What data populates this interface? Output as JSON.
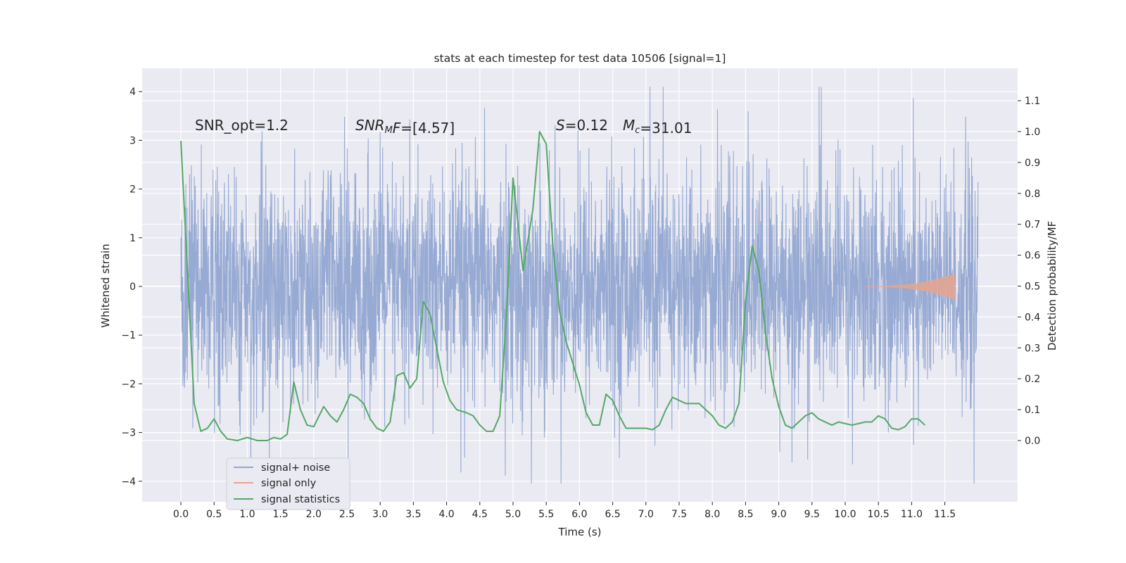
{
  "chart_data": {
    "type": "line",
    "title": "stats at each timestep for test data 10506 [signal=1]",
    "xlabel": "Time (s)",
    "ylabel_left": "Whitened strain",
    "ylabel_right": "Detection probability/MF",
    "xlim": [
      -0.57,
      12.57
    ],
    "ylim_left": [
      -4.4,
      4.5
    ],
    "ylim_right": [
      -0.2,
      1.2
    ],
    "x_ticks": [
      "0.0",
      "0.5",
      "1.0",
      "1.5",
      "2.0",
      "2.5",
      "3.0",
      "3.5",
      "4.0",
      "4.5",
      "5.0",
      "5.5",
      "6.0",
      "6.5",
      "7.0",
      "7.5",
      "8.0",
      "8.5",
      "9.0",
      "9.5",
      "10.0",
      "10.5",
      "11.0",
      "11.5"
    ],
    "y_ticks_left": [
      "−4",
      "−3",
      "−2",
      "−1",
      "0",
      "1",
      "2",
      "3",
      "4"
    ],
    "y_ticks_right": [
      "0.0",
      "0.1",
      "0.2",
      "0.3",
      "0.4",
      "0.5",
      "0.6",
      "0.7",
      "0.8",
      "0.9",
      "1.0",
      "1.1"
    ],
    "grid": true,
    "legend_position": "lower-left",
    "annotations": [
      {
        "name": "snr-opt",
        "segments": [
          {
            "text": "SNR_opt=1.2"
          }
        ]
      },
      {
        "name": "snr-mf",
        "segments": [
          {
            "text": "SNR",
            "italic": true
          },
          {
            "text": "M",
            "italic": true,
            "sub": true
          },
          {
            "text": "F",
            "italic": true
          },
          {
            "text": "=[4.57]"
          }
        ]
      },
      {
        "name": "s-value",
        "segments": [
          {
            "text": "S",
            "italic": true
          },
          {
            "text": "=0.12"
          }
        ]
      },
      {
        "name": "mc-value",
        "segments": [
          {
            "text": "M",
            "italic": true
          },
          {
            "text": "c",
            "italic": true,
            "sub": true
          },
          {
            "text": "=31.01"
          }
        ]
      }
    ],
    "series": [
      {
        "name": "signal+ noise",
        "axis": "left",
        "color": "#92a6d1",
        "x_range": [
          0.0,
          12.0
        ],
        "typical_amplitude": 1.3,
        "envelope_peak_max": [
          4.0,
          4.1,
          4.0
        ],
        "envelope_peak_min": [
          -3.5,
          -3.8,
          -4.0
        ]
      },
      {
        "name": "signal only",
        "axis": "left",
        "color": "#e6a58c",
        "x_range": [
          10.3,
          11.65
        ],
        "amplitude_max": 0.28
      },
      {
        "name": "signal statistics",
        "axis": "right",
        "color": "#55a868",
        "points": [
          [
            0.0,
            0.97
          ],
          [
            0.1,
            0.55
          ],
          [
            0.2,
            0.12
          ],
          [
            0.3,
            0.03
          ],
          [
            0.4,
            0.04
          ],
          [
            0.5,
            0.07
          ],
          [
            0.6,
            0.03
          ],
          [
            0.7,
            0.005
          ],
          [
            0.85,
            0.0
          ],
          [
            1.0,
            0.01
          ],
          [
            1.15,
            0.0
          ],
          [
            1.3,
            0.0
          ],
          [
            1.4,
            0.01
          ],
          [
            1.5,
            0.005
          ],
          [
            1.6,
            0.02
          ],
          [
            1.7,
            0.19
          ],
          [
            1.8,
            0.1
          ],
          [
            1.9,
            0.05
          ],
          [
            2.0,
            0.045
          ],
          [
            2.15,
            0.11
          ],
          [
            2.25,
            0.08
          ],
          [
            2.35,
            0.06
          ],
          [
            2.45,
            0.1
          ],
          [
            2.55,
            0.15
          ],
          [
            2.65,
            0.14
          ],
          [
            2.75,
            0.12
          ],
          [
            2.85,
            0.07
          ],
          [
            2.95,
            0.04
          ],
          [
            3.05,
            0.03
          ],
          [
            3.15,
            0.06
          ],
          [
            3.25,
            0.21
          ],
          [
            3.35,
            0.22
          ],
          [
            3.45,
            0.17
          ],
          [
            3.55,
            0.2
          ],
          [
            3.65,
            0.45
          ],
          [
            3.75,
            0.41
          ],
          [
            3.85,
            0.3
          ],
          [
            3.95,
            0.19
          ],
          [
            4.05,
            0.13
          ],
          [
            4.15,
            0.1
          ],
          [
            4.3,
            0.09
          ],
          [
            4.4,
            0.08
          ],
          [
            4.5,
            0.05
          ],
          [
            4.6,
            0.03
          ],
          [
            4.7,
            0.03
          ],
          [
            4.8,
            0.08
          ],
          [
            4.9,
            0.4
          ],
          [
            5.0,
            0.85
          ],
          [
            5.15,
            0.55
          ],
          [
            5.3,
            0.75
          ],
          [
            5.4,
            1.0
          ],
          [
            5.5,
            0.96
          ],
          [
            5.6,
            0.63
          ],
          [
            5.7,
            0.42
          ],
          [
            5.8,
            0.32
          ],
          [
            5.9,
            0.25
          ],
          [
            6.0,
            0.18
          ],
          [
            6.1,
            0.09
          ],
          [
            6.2,
            0.05
          ],
          [
            6.3,
            0.05
          ],
          [
            6.4,
            0.15
          ],
          [
            6.5,
            0.13
          ],
          [
            6.6,
            0.08
          ],
          [
            6.7,
            0.04
          ],
          [
            6.8,
            0.04
          ],
          [
            6.9,
            0.04
          ],
          [
            7.0,
            0.04
          ],
          [
            7.1,
            0.035
          ],
          [
            7.2,
            0.05
          ],
          [
            7.3,
            0.1
          ],
          [
            7.4,
            0.14
          ],
          [
            7.5,
            0.13
          ],
          [
            7.6,
            0.12
          ],
          [
            7.7,
            0.12
          ],
          [
            7.8,
            0.12
          ],
          [
            7.9,
            0.1
          ],
          [
            8.0,
            0.08
          ],
          [
            8.1,
            0.05
          ],
          [
            8.2,
            0.04
          ],
          [
            8.3,
            0.06
          ],
          [
            8.4,
            0.12
          ],
          [
            8.5,
            0.45
          ],
          [
            8.6,
            0.63
          ],
          [
            8.7,
            0.55
          ],
          [
            8.8,
            0.35
          ],
          [
            8.9,
            0.2
          ],
          [
            9.0,
            0.11
          ],
          [
            9.1,
            0.05
          ],
          [
            9.2,
            0.04
          ],
          [
            9.3,
            0.06
          ],
          [
            9.4,
            0.08
          ],
          [
            9.5,
            0.09
          ],
          [
            9.6,
            0.07
          ],
          [
            9.7,
            0.06
          ],
          [
            9.8,
            0.05
          ],
          [
            9.9,
            0.06
          ],
          [
            10.0,
            0.055
          ],
          [
            10.1,
            0.05
          ],
          [
            10.2,
            0.055
          ],
          [
            10.3,
            0.06
          ],
          [
            10.4,
            0.06
          ],
          [
            10.5,
            0.08
          ],
          [
            10.6,
            0.07
          ],
          [
            10.7,
            0.04
          ],
          [
            10.8,
            0.035
          ],
          [
            10.9,
            0.045
          ],
          [
            11.0,
            0.07
          ],
          [
            11.1,
            0.07
          ],
          [
            11.2,
            0.05
          ]
        ]
      }
    ],
    "legend": [
      "signal+ noise",
      "signal only",
      "signal statistics"
    ]
  }
}
